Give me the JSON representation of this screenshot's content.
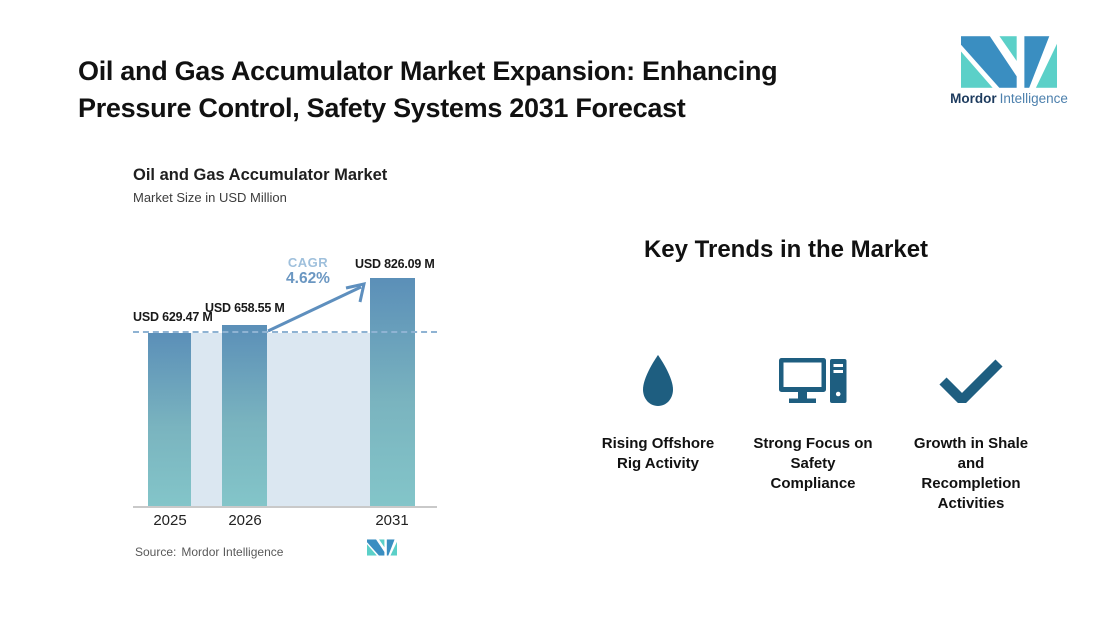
{
  "header": {
    "title": "Oil and Gas Accumulator Market Expansion: Enhancing\nPressure Control, Safety Systems 2031 Forecast",
    "brand": {
      "name_bold": "Mordor",
      "name_light": "Intelligence"
    }
  },
  "chart": {
    "title": "Oil and Gas Accumulator Market",
    "subtitle": "Market Size in USD Million",
    "cagr_label": "CAGR",
    "cagr_value": "4.62%",
    "source_label": "Source:",
    "source_value": "Mordor Intelligence"
  },
  "chart_data": {
    "type": "bar",
    "title": "Oil and Gas Accumulator Market",
    "subtitle": "Market Size in USD Million",
    "categories": [
      "2025",
      "2026",
      "2031"
    ],
    "values": [
      629.47,
      658.55,
      826.09
    ],
    "value_labels": [
      "USD 629.47 M",
      "USD 658.55 M",
      "USD 826.09 M"
    ],
    "cagr": "4.62%",
    "ylim": [
      0,
      850
    ],
    "grid": false,
    "legend": "none",
    "annotations": [
      "CAGR 4.62% arrow from 2026 bar to 2031 bar",
      "dashed reference line at 2025 value"
    ],
    "source": "Source: Mordor Intelligence"
  },
  "trends": {
    "heading": "Key Trends in the Market",
    "items": [
      {
        "icon": "water-drop-icon",
        "caption": "Rising Offshore\nRig Activity"
      },
      {
        "icon": "desktop-computer-icon",
        "caption": "Strong Focus on\nSafety\nCompliance"
      },
      {
        "icon": "checkmark-icon",
        "caption": "Growth in Shale\nand\nRecompletion\nActivities"
      }
    ]
  },
  "colors": {
    "bar_top": "#5b8fb8",
    "bar_bottom": "#83c5c9",
    "shaded_region": "#dbe7f1",
    "dashed_line": "#8fb3d3",
    "arrow": "#5e8fbe",
    "cagr_label": "#9fc0dc",
    "cagr_value": "#6b97c2",
    "trend_icon": "#1e5e80",
    "logo_blue": "#3a8ec1",
    "logo_teal": "#5bd0c8",
    "brand_dark": "#1d3b5e",
    "brand_light": "#4d80ad"
  }
}
